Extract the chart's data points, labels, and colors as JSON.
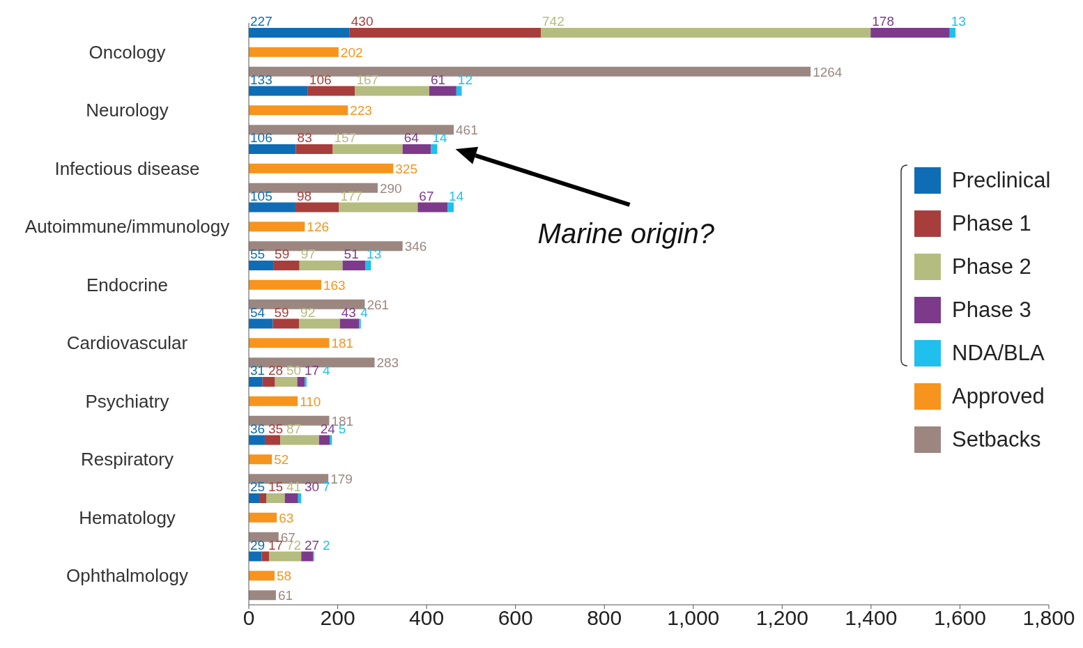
{
  "chart_data": {
    "type": "bar",
    "orientation": "horizontal",
    "stacked": true,
    "categories": [
      null,
      "Oncology",
      null,
      null,
      "Neurology",
      null,
      null,
      "Infectious disease",
      null,
      null,
      "Autoimmune/immunology",
      null,
      null,
      "Endocrine",
      null,
      null,
      "Cardiovascular",
      null,
      null,
      "Psychiatry",
      null,
      null,
      "Respiratory",
      null,
      null,
      "Hematology",
      null,
      null,
      "Ophthalmology",
      null
    ],
    "series": [
      {
        "name": "Preclinical",
        "color": "#0f6db6",
        "values": [
          227,
          null,
          null,
          133,
          null,
          null,
          106,
          null,
          null,
          105,
          null,
          null,
          55,
          null,
          null,
          54,
          null,
          null,
          31,
          null,
          null,
          36,
          null,
          null,
          25,
          null,
          null,
          29,
          null,
          null
        ]
      },
      {
        "name": "Phase 1",
        "color": "#a83e3b",
        "values": [
          430,
          null,
          null,
          106,
          null,
          null,
          83,
          null,
          null,
          98,
          null,
          null,
          59,
          null,
          null,
          59,
          null,
          null,
          28,
          null,
          null,
          35,
          null,
          null,
          15,
          null,
          null,
          17,
          null,
          null
        ]
      },
      {
        "name": "Phase 2",
        "color": "#b5bc7f",
        "values": [
          742,
          null,
          null,
          167,
          null,
          null,
          157,
          null,
          null,
          177,
          null,
          null,
          97,
          null,
          null,
          92,
          null,
          null,
          50,
          null,
          null,
          87,
          null,
          null,
          41,
          null,
          null,
          72,
          null,
          null
        ]
      },
      {
        "name": "Phase 3",
        "color": "#7d3a8a",
        "values": [
          178,
          null,
          null,
          61,
          null,
          null,
          64,
          null,
          null,
          67,
          null,
          null,
          51,
          null,
          null,
          43,
          null,
          null,
          17,
          null,
          null,
          24,
          null,
          null,
          30,
          null,
          null,
          27,
          null,
          null
        ]
      },
      {
        "name": "NDA/BLA",
        "color": "#1fbfee",
        "values": [
          13,
          null,
          null,
          12,
          null,
          null,
          14,
          null,
          null,
          14,
          null,
          null,
          13,
          null,
          null,
          4,
          null,
          null,
          4,
          null,
          null,
          5,
          null,
          null,
          7,
          null,
          null,
          2,
          null,
          null
        ]
      },
      {
        "name": "Approved",
        "color": "#f7941d",
        "values": [
          null,
          202,
          null,
          null,
          223,
          null,
          null,
          325,
          null,
          null,
          126,
          null,
          null,
          163,
          null,
          null,
          181,
          null,
          null,
          110,
          null,
          null,
          52,
          null,
          null,
          63,
          null,
          null,
          58,
          null
        ]
      },
      {
        "name": "Setbacks",
        "color": "#9c8780",
        "values": [
          null,
          null,
          1264,
          null,
          null,
          461,
          null,
          null,
          290,
          null,
          null,
          346,
          null,
          null,
          261,
          null,
          null,
          283,
          null,
          null,
          181,
          null,
          null,
          179,
          null,
          null,
          67,
          null,
          null,
          61
        ]
      }
    ],
    "xlim": [
      0,
      1800
    ],
    "xticks": [
      0,
      200,
      400,
      600,
      800,
      {
        "value": 1000,
        "label": "1,000"
      },
      {
        "value": 1200,
        "label": "1,200"
      },
      {
        "value": 1400,
        "label": "1,400"
      },
      {
        "value": 1600,
        "label": "1,600"
      },
      {
        "value": 1800,
        "label": "1,800"
      }
    ],
    "data_labels": true,
    "legend": "right",
    "annotations": [
      "Marine origin?"
    ]
  }
}
